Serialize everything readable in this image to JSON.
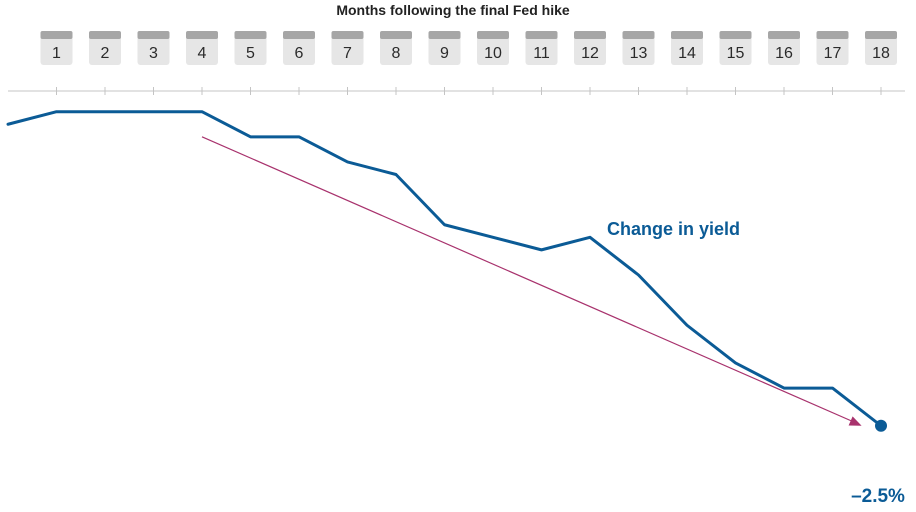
{
  "chart_data": {
    "type": "line",
    "title": "Months following the final Fed hike",
    "x": [
      0,
      1,
      2,
      3,
      4,
      5,
      6,
      7,
      8,
      9,
      10,
      11,
      12,
      13,
      14,
      15,
      16,
      17,
      18
    ],
    "tick_labels": [
      "1",
      "2",
      "3",
      "4",
      "5",
      "6",
      "7",
      "8",
      "9",
      "10",
      "11",
      "12",
      "13",
      "14",
      "15",
      "16",
      "17",
      "18"
    ],
    "series": [
      {
        "name": "Change in yield",
        "values": [
          -0.1,
          0.0,
          0.0,
          0.0,
          0.0,
          -0.2,
          -0.2,
          -0.4,
          -0.5,
          -0.9,
          -1.0,
          -1.1,
          -1.0,
          -1.3,
          -1.7,
          -2.0,
          -2.2,
          -2.2,
          -2.5
        ]
      }
    ],
    "end_label": "–2.5%",
    "trend_arrow": {
      "from_x": 4,
      "from_y": -0.2,
      "to_x": 17.6,
      "to_y": -2.5
    },
    "ylim": [
      0.3,
      -2.9
    ],
    "grid": false,
    "legend": "inline"
  },
  "colors": {
    "line": "#0b5b96",
    "arrow": "#a8326d",
    "tab_body": "#e6e6e6",
    "tab_top": "#a6a6a6",
    "axis": "#c4c4c4",
    "title": "#222222",
    "tick_text": "#2b2b2b"
  }
}
